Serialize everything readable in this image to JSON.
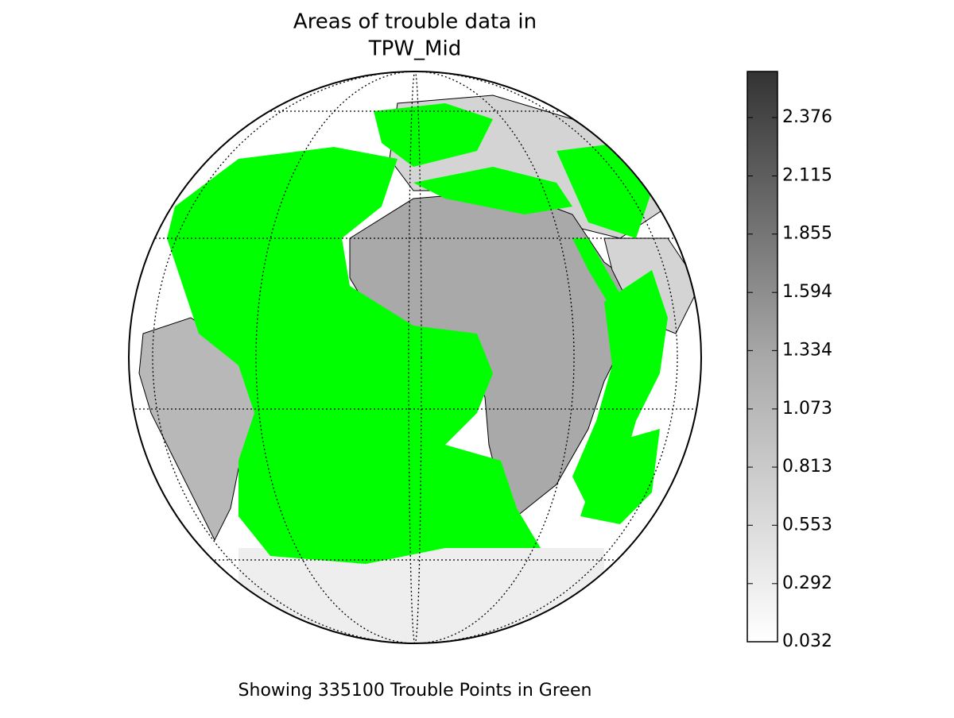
{
  "title": [
    "Areas of trouble data in",
    "TPW_Mid"
  ],
  "colorbar": {
    "lim": [
      0.032,
      2.582
    ],
    "ticks": [
      0.032,
      0.292,
      0.553,
      0.813,
      1.073,
      1.334,
      1.594,
      1.855,
      2.115,
      2.376
    ]
  },
  "caption": "Showing 335100 Trouble Points in Green"
}
